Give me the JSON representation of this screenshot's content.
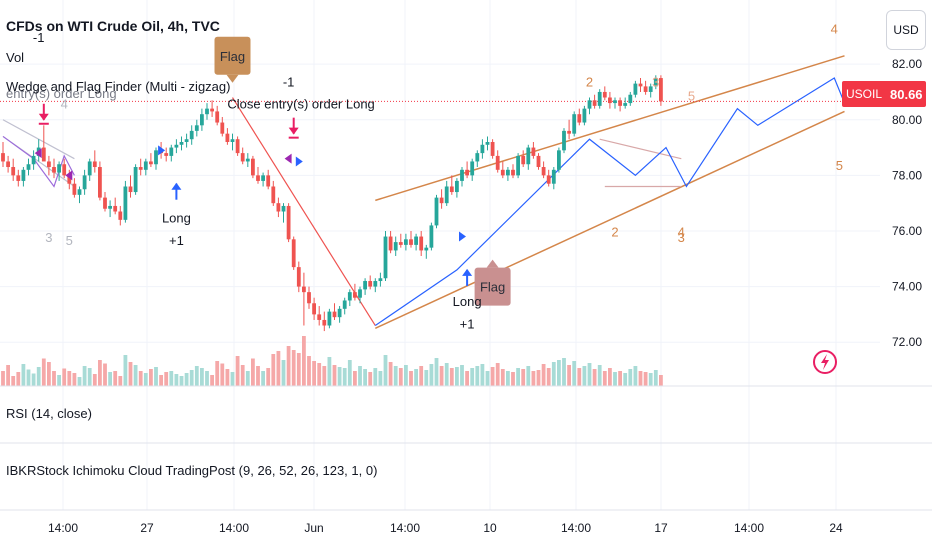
{
  "header": {
    "title": "CFDs on WTI Crude Oil, 4h, TVC",
    "vol_label": "Vol",
    "indicator_label": "Wedge and Flag Finder (Multi - zigzag)",
    "ghost_label": "entry(s) order Long"
  },
  "currency_button": "USD",
  "price_badge": {
    "symbol": "USOIL",
    "value": "80.66",
    "color": "#f23645"
  },
  "panes": {
    "rsi_label": "RSI (14, close)",
    "ichimoku_label": "IBKRStock Ichimoku Cloud TradingPost (9, 26, 52, 26, 123, 1, 0)"
  },
  "chart_data": {
    "type": "candlestick",
    "symbol": "USOIL",
    "timeframe": "4h",
    "y_axis": {
      "side": "right",
      "ticks": [
        "72.00",
        "74.00",
        "76.00",
        "78.00",
        "80.00",
        "82.00"
      ],
      "range": [
        71.0,
        83.3
      ]
    },
    "x_axis": {
      "ticks": [
        "14:00",
        "27",
        "14:00",
        "Jun",
        "14:00",
        "10",
        "14:00",
        "17",
        "14:00",
        "24"
      ]
    },
    "last_price": 80.66,
    "colors": {
      "up": "#26a69a",
      "down": "#ef5350",
      "vol_up": "#a8dbd6",
      "vol_down": "#f5a8a8"
    },
    "ohlc": [
      [
        78.8,
        79.2,
        78.3,
        78.5
      ],
      [
        78.5,
        78.7,
        78.1,
        78.3
      ],
      [
        78.3,
        78.6,
        77.8,
        78.0
      ],
      [
        78.0,
        78.2,
        77.6,
        77.8
      ],
      [
        77.8,
        78.3,
        77.6,
        78.2
      ],
      [
        78.2,
        78.6,
        78.0,
        78.4
      ],
      [
        78.4,
        78.9,
        78.2,
        78.7
      ],
      [
        78.7,
        79.3,
        78.5,
        79.0
      ],
      [
        79.0,
        79.8,
        78.6,
        78.5
      ],
      [
        78.5,
        78.7,
        78.0,
        78.3
      ],
      [
        78.3,
        78.6,
        77.9,
        78.1
      ],
      [
        78.1,
        78.5,
        77.8,
        78.4
      ],
      [
        78.4,
        78.6,
        77.9,
        78.0
      ],
      [
        78.0,
        78.2,
        77.5,
        77.7
      ],
      [
        77.7,
        77.9,
        77.2,
        77.3
      ],
      [
        77.3,
        77.6,
        77.0,
        77.5
      ],
      [
        77.5,
        78.2,
        77.3,
        78.0
      ],
      [
        78.0,
        78.6,
        77.8,
        78.5
      ],
      [
        78.5,
        78.9,
        78.1,
        78.3
      ],
      [
        78.3,
        78.5,
        77.1,
        77.2
      ],
      [
        77.2,
        77.4,
        76.7,
        76.8
      ],
      [
        76.8,
        77.1,
        76.5,
        76.9
      ],
      [
        76.9,
        77.2,
        76.6,
        76.7
      ],
      [
        76.7,
        76.9,
        76.2,
        76.4
      ],
      [
        76.4,
        77.8,
        76.3,
        77.6
      ],
      [
        77.6,
        78.0,
        77.2,
        77.4
      ],
      [
        77.4,
        78.4,
        77.3,
        78.3
      ],
      [
        78.3,
        78.6,
        78.0,
        78.2
      ],
      [
        78.2,
        78.6,
        78.0,
        78.5
      ],
      [
        78.5,
        78.8,
        78.3,
        78.4
      ],
      [
        78.4,
        79.0,
        78.2,
        78.9
      ],
      [
        78.9,
        79.2,
        78.6,
        78.8
      ],
      [
        78.8,
        79.0,
        78.5,
        78.7
      ],
      [
        78.7,
        79.1,
        78.5,
        79.0
      ],
      [
        79.0,
        79.3,
        78.8,
        79.1
      ],
      [
        79.1,
        79.4,
        78.9,
        79.2
      ],
      [
        79.2,
        79.5,
        79.0,
        79.3
      ],
      [
        79.3,
        79.8,
        79.1,
        79.6
      ],
      [
        79.6,
        80.0,
        79.4,
        79.8
      ],
      [
        79.8,
        80.4,
        79.6,
        80.2
      ],
      [
        80.2,
        80.6,
        80.0,
        80.4
      ],
      [
        80.4,
        80.7,
        80.1,
        80.3
      ],
      [
        80.3,
        80.5,
        79.8,
        79.9
      ],
      [
        79.9,
        80.1,
        79.4,
        79.5
      ],
      [
        79.5,
        79.7,
        79.1,
        79.2
      ],
      [
        79.2,
        79.5,
        78.9,
        79.3
      ],
      [
        79.3,
        79.4,
        78.7,
        78.8
      ],
      [
        78.8,
        79.0,
        78.4,
        78.5
      ],
      [
        78.5,
        78.8,
        78.3,
        78.6
      ],
      [
        78.6,
        78.7,
        77.9,
        78.0
      ],
      [
        78.0,
        78.3,
        77.7,
        77.8
      ],
      [
        77.8,
        78.1,
        77.6,
        78.0
      ],
      [
        78.0,
        78.2,
        77.5,
        77.6
      ],
      [
        77.6,
        77.8,
        76.9,
        77.0
      ],
      [
        77.0,
        77.2,
        76.5,
        76.7
      ],
      [
        76.7,
        77.0,
        76.3,
        76.9
      ],
      [
        76.9,
        77.0,
        75.6,
        75.7
      ],
      [
        75.7,
        75.8,
        74.6,
        74.7
      ],
      [
        74.7,
        74.9,
        73.8,
        74.0
      ],
      [
        74.0,
        74.5,
        72.6,
        73.8
      ],
      [
        73.8,
        74.0,
        73.2,
        73.4
      ],
      [
        73.4,
        73.6,
        72.8,
        73.0
      ],
      [
        73.0,
        73.3,
        72.6,
        72.8
      ],
      [
        72.8,
        73.1,
        72.4,
        72.6
      ],
      [
        72.6,
        73.2,
        72.5,
        73.1
      ],
      [
        73.1,
        73.4,
        72.8,
        72.9
      ],
      [
        72.9,
        73.3,
        72.7,
        73.2
      ],
      [
        73.2,
        73.6,
        73.0,
        73.5
      ],
      [
        73.5,
        73.9,
        73.3,
        73.8
      ],
      [
        73.8,
        74.1,
        73.5,
        73.6
      ],
      [
        73.6,
        74.0,
        73.4,
        73.9
      ],
      [
        73.9,
        74.3,
        73.7,
        74.2
      ],
      [
        74.2,
        74.4,
        73.9,
        74.0
      ],
      [
        74.0,
        74.3,
        73.8,
        74.2
      ],
      [
        74.2,
        74.5,
        74.0,
        74.3
      ],
      [
        74.3,
        76.0,
        74.2,
        75.8
      ],
      [
        75.8,
        76.0,
        75.2,
        75.3
      ],
      [
        75.3,
        75.8,
        75.1,
        75.6
      ],
      [
        75.6,
        75.9,
        75.4,
        75.5
      ],
      [
        75.5,
        75.9,
        75.3,
        75.7
      ],
      [
        75.7,
        76.0,
        75.4,
        75.5
      ],
      [
        75.5,
        75.9,
        75.3,
        75.8
      ],
      [
        75.8,
        76.0,
        75.1,
        75.3
      ],
      [
        75.3,
        75.5,
        75.0,
        75.4
      ],
      [
        75.4,
        76.3,
        75.3,
        76.2
      ],
      [
        76.2,
        77.3,
        76.1,
        77.2
      ],
      [
        77.2,
        77.5,
        76.8,
        77.0
      ],
      [
        77.0,
        77.8,
        76.9,
        77.6
      ],
      [
        77.6,
        78.0,
        77.3,
        77.4
      ],
      [
        77.4,
        77.9,
        77.2,
        77.8
      ],
      [
        77.8,
        78.3,
        77.6,
        78.2
      ],
      [
        78.2,
        78.5,
        77.9,
        78.0
      ],
      [
        78.0,
        78.6,
        77.8,
        78.5
      ],
      [
        78.5,
        78.9,
        78.3,
        78.8
      ],
      [
        78.8,
        79.3,
        78.6,
        79.1
      ],
      [
        79.1,
        79.4,
        78.9,
        79.2
      ],
      [
        79.2,
        79.3,
        78.6,
        78.7
      ],
      [
        78.7,
        78.9,
        78.1,
        78.2
      ],
      [
        78.2,
        78.5,
        77.9,
        78.0
      ],
      [
        78.0,
        78.3,
        77.8,
        78.2
      ],
      [
        78.2,
        78.4,
        77.9,
        78.0
      ],
      [
        78.0,
        78.8,
        77.9,
        78.7
      ],
      [
        78.7,
        78.9,
        78.3,
        78.4
      ],
      [
        78.4,
        79.1,
        78.2,
        79.0
      ],
      [
        79.0,
        79.2,
        78.6,
        78.7
      ],
      [
        78.7,
        78.8,
        78.2,
        78.3
      ],
      [
        78.3,
        78.5,
        77.9,
        78.0
      ],
      [
        78.0,
        78.2,
        77.6,
        77.7
      ],
      [
        77.7,
        78.3,
        77.5,
        78.2
      ],
      [
        78.2,
        79.0,
        78.1,
        78.9
      ],
      [
        78.9,
        79.7,
        78.8,
        79.6
      ],
      [
        79.6,
        80.0,
        79.3,
        79.5
      ],
      [
        79.5,
        80.3,
        79.4,
        80.2
      ],
      [
        80.2,
        80.4,
        79.8,
        79.9
      ],
      [
        79.9,
        80.5,
        79.8,
        80.4
      ],
      [
        80.4,
        80.8,
        80.2,
        80.7
      ],
      [
        80.7,
        80.9,
        80.4,
        80.5
      ],
      [
        80.5,
        81.1,
        80.4,
        81.0
      ],
      [
        81.0,
        81.2,
        80.7,
        80.8
      ],
      [
        80.8,
        81.0,
        80.4,
        80.6
      ],
      [
        80.6,
        80.8,
        80.4,
        80.7
      ],
      [
        80.7,
        80.8,
        80.3,
        80.5
      ],
      [
        80.5,
        80.8,
        80.4,
        80.6
      ],
      [
        80.6,
        81.0,
        80.5,
        80.9
      ],
      [
        80.9,
        81.4,
        80.8,
        81.3
      ],
      [
        81.3,
        81.5,
        81.0,
        81.2
      ],
      [
        81.2,
        81.4,
        80.9,
        81.0
      ],
      [
        81.0,
        81.3,
        80.8,
        81.2
      ],
      [
        81.2,
        81.6,
        81.1,
        81.5
      ],
      [
        81.5,
        81.6,
        80.5,
        80.66
      ]
    ],
    "volume": [
      0.3,
      0.42,
      0.2,
      0.28,
      0.44,
      0.33,
      0.25,
      0.38,
      0.55,
      0.48,
      0.3,
      0.22,
      0.35,
      0.3,
      0.26,
      0.18,
      0.4,
      0.36,
      0.24,
      0.52,
      0.45,
      0.28,
      0.3,
      0.2,
      0.62,
      0.48,
      0.42,
      0.3,
      0.26,
      0.34,
      0.38,
      0.22,
      0.28,
      0.3,
      0.24,
      0.2,
      0.26,
      0.32,
      0.4,
      0.36,
      0.3,
      0.22,
      0.5,
      0.45,
      0.34,
      0.28,
      0.6,
      0.42,
      0.3,
      0.55,
      0.4,
      0.3,
      0.36,
      0.64,
      0.7,
      0.52,
      0.8,
      0.72,
      0.66,
      1.0,
      0.6,
      0.5,
      0.46,
      0.4,
      0.58,
      0.42,
      0.38,
      0.36,
      0.52,
      0.3,
      0.4,
      0.34,
      0.28,
      0.36,
      0.3,
      0.62,
      0.48,
      0.4,
      0.36,
      0.42,
      0.3,
      0.34,
      0.4,
      0.32,
      0.44,
      0.56,
      0.4,
      0.46,
      0.36,
      0.38,
      0.42,
      0.3,
      0.36,
      0.4,
      0.44,
      0.3,
      0.38,
      0.46,
      0.34,
      0.3,
      0.28,
      0.36,
      0.34,
      0.4,
      0.3,
      0.32,
      0.44,
      0.36,
      0.48,
      0.52,
      0.56,
      0.42,
      0.5,
      0.36,
      0.4,
      0.46,
      0.34,
      0.42,
      0.3,
      0.36,
      0.28,
      0.3,
      0.26,
      0.34,
      0.4,
      0.3,
      0.28,
      0.26,
      0.32,
      0.22,
      0.46
    ],
    "annotations": {
      "texts": [
        {
          "t": "-1",
          "i": 7,
          "p": 82.8,
          "c": "#131722"
        },
        {
          "t": "4",
          "i": 12,
          "p": 80.4,
          "c": "#b2b5be"
        },
        {
          "t": "-1",
          "i": 56,
          "p": 81.2,
          "c": "#131722"
        },
        {
          "t": "Close entry(s) order Long",
          "i": 44,
          "p": 80.4,
          "c": "#131722",
          "anchor": "start"
        },
        {
          "t": "Long",
          "i": 34,
          "p": 76.3,
          "c": "#131722"
        },
        {
          "t": "+1",
          "i": 34,
          "p": 75.5,
          "c": "#131722"
        },
        {
          "t": "Long",
          "i": 91,
          "p": 73.3,
          "c": "#131722"
        },
        {
          "t": "+1",
          "i": 91,
          "p": 72.5,
          "c": "#131722"
        },
        {
          "t": "3",
          "i": 9,
          "p": 75.6,
          "c": "#b2b5be"
        },
        {
          "t": "5",
          "i": 13,
          "p": 75.5,
          "c": "#b2b5be"
        },
        {
          "t": "2",
          "i": 115,
          "p": 81.2,
          "c": "#d4864a"
        },
        {
          "t": "3",
          "i": 128,
          "p": 81.2,
          "c": "#e8a98c"
        },
        {
          "t": "5",
          "i": 135,
          "p": 80.7,
          "c": "#e8a98c"
        },
        {
          "t": "4",
          "i": 163,
          "p": 83.1,
          "c": "#d4864a"
        },
        {
          "t": "5",
          "i": 164,
          "p": 78.2,
          "c": "#d4864a"
        },
        {
          "t": "2",
          "i": 120,
          "p": 75.8,
          "c": "#d4864a"
        },
        {
          "t": "3",
          "i": 133,
          "p": 75.6,
          "c": "#d4864a"
        },
        {
          "t": "4",
          "i": 133,
          "p": 75.8,
          "c": "#d4864a"
        }
      ],
      "flags": [
        {
          "t": "Flag",
          "i": 45,
          "p": 82.3,
          "bg": "#c8905a",
          "pointer": "down"
        },
        {
          "t": "Flag",
          "i": 96,
          "p": 74.0,
          "bg": "#c99090",
          "pointer": "up"
        }
      ],
      "arrows": [
        {
          "i": 34,
          "p": 77.7,
          "dir": "up",
          "c": "#2962ff"
        },
        {
          "i": 91,
          "p": 74.6,
          "dir": "up",
          "c": "#2962ff"
        },
        {
          "i": 8,
          "p": 80.0,
          "dir": "down",
          "c": "#e91e63"
        },
        {
          "i": 57,
          "p": 79.5,
          "dir": "down",
          "c": "#e91e63"
        }
      ],
      "pattern_lines": [
        {
          "pts": [
            [
              73,
              77.1
            ],
            [
              165,
              82.3
            ]
          ],
          "c": "#d4864a",
          "w": 1.5
        },
        {
          "pts": [
            [
              73,
              72.5
            ],
            [
              165,
              80.3
            ]
          ],
          "c": "#d4864a",
          "w": 1.5
        },
        {
          "pts": [
            [
              117,
              79.3
            ],
            [
              133,
              78.6
            ]
          ],
          "c": "#d8a8a8",
          "w": 1.2
        },
        {
          "pts": [
            [
              118,
              77.6
            ],
            [
              133,
              77.6
            ]
          ],
          "c": "#d8a8a8",
          "w": 1.2
        },
        {
          "pts": [
            [
              0,
              80.0
            ],
            [
              14,
              78.6
            ]
          ],
          "c": "#c0c0d0",
          "w": 1.2
        },
        {
          "pts": [
            [
              0,
              79.4
            ],
            [
              14,
              77.6
            ]
          ],
          "c": "#c0c0d0",
          "w": 1.2
        }
      ],
      "zigzag": [
        {
          "pts": [
            [
              45,
              80.8
            ],
            [
              73,
              72.6
            ]
          ],
          "c": "#ef5350",
          "w": 1.2
        },
        {
          "pts": [
            [
              73,
              72.6
            ],
            [
              89,
              74.6
            ],
            [
              115,
              79.3
            ],
            [
              124,
              78.0
            ],
            [
              130,
              79.0
            ],
            [
              134,
              77.6
            ],
            [
              144,
              80.4
            ],
            [
              148,
              79.8
            ],
            [
              163,
              81.5
            ],
            [
              165,
              80.6
            ]
          ],
          "c": "#2962ff",
          "w": 1.2
        },
        {
          "pts": [
            [
              0,
              79.4
            ],
            [
              6,
              78.6
            ],
            [
              10,
              77.6
            ],
            [
              12,
              78.7
            ],
            [
              14,
              78.0
            ]
          ],
          "c": "#9c6bdb",
          "w": 1.2
        }
      ],
      "small_triangles": [
        {
          "i": 31,
          "p": 78.9,
          "c": "#2962ff",
          "dir": "right"
        },
        {
          "i": 58,
          "p": 78.5,
          "c": "#2962ff",
          "dir": "right"
        },
        {
          "i": 90,
          "p": 75.8,
          "c": "#2962ff",
          "dir": "right"
        },
        {
          "i": 7,
          "p": 78.8,
          "c": "#9c27b0",
          "dir": "left"
        },
        {
          "i": 13,
          "p": 78.0,
          "c": "#9c27b0",
          "dir": "left"
        },
        {
          "i": 56,
          "p": 78.6,
          "c": "#9c27b0",
          "dir": "left"
        }
      ]
    }
  }
}
